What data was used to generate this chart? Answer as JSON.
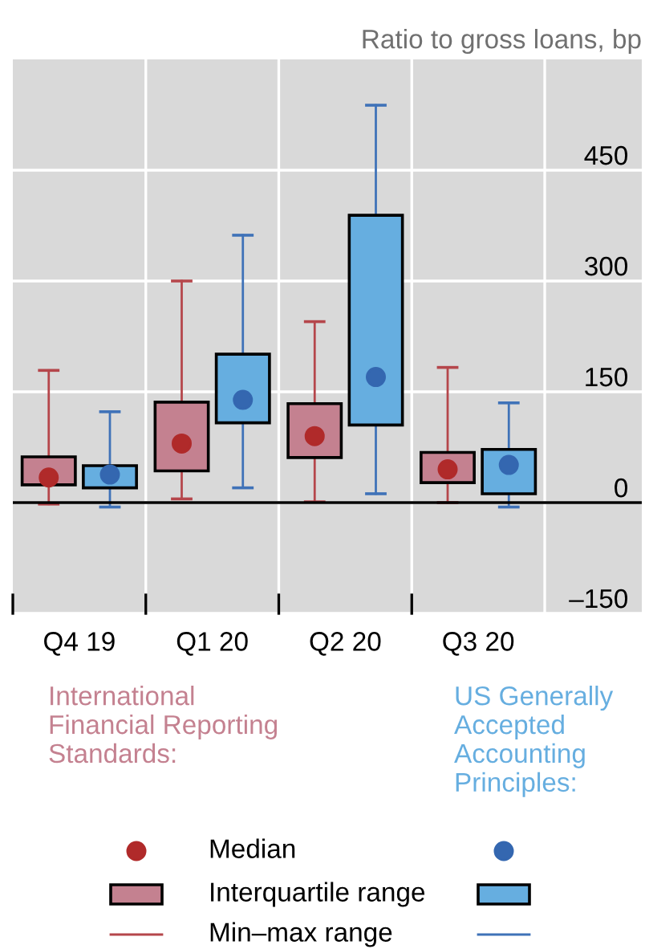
{
  "chart_data": {
    "type": "box",
    "title": "Ratio to gross loans, bp",
    "categories": [
      "Q4 19",
      "Q1 20",
      "Q2 20",
      "Q3 20"
    ],
    "series": [
      {
        "name": "International Financial Reporting Standards:",
        "color": "#c48190",
        "boxes": [
          {
            "low": -2,
            "q1": 24,
            "median": 34,
            "q3": 62,
            "high": 179
          },
          {
            "low": 5,
            "q1": 43,
            "median": 80,
            "q3": 136,
            "high": 300
          },
          {
            "low": 1,
            "q1": 61,
            "median": 90,
            "q3": 134,
            "high": 245
          },
          {
            "low": 0,
            "q1": 27,
            "median": 45,
            "q3": 68,
            "high": 183
          }
        ]
      },
      {
        "name": "US Generally Accepted Accounting Principles:",
        "color": "#66aee0",
        "boxes": [
          {
            "low": -6,
            "q1": 20,
            "median": 38,
            "q3": 50,
            "high": 123
          },
          {
            "low": 20,
            "q1": 108,
            "median": 139,
            "q3": 201,
            "high": 362
          },
          {
            "low": 12,
            "q1": 105,
            "median": 170,
            "q3": 389,
            "high": 538
          },
          {
            "low": -6,
            "q1": 12,
            "median": 51,
            "q3": 72,
            "high": 135
          }
        ]
      }
    ],
    "ylim": [
      -150,
      600
    ],
    "yticks": [
      {
        "value": -150,
        "label": "–150"
      },
      0,
      150,
      300,
      450
    ],
    "grid": true,
    "ref_lines": [
      {
        "axis": "y",
        "value": 0,
        "color": "#000000"
      }
    ],
    "legend": "bottom",
    "marker": "circle",
    "annotations": [
      "Median",
      "Interquartile range",
      "Min–max range"
    ]
  }
}
